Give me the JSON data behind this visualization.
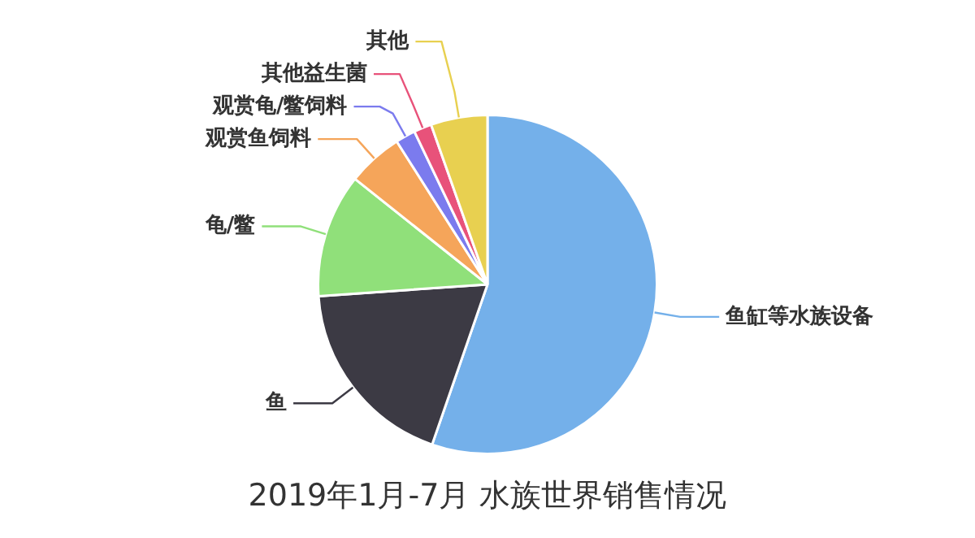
{
  "chart_data": {
    "type": "pie",
    "title": "2019年1月-7月 水族世界销售情况",
    "categories": [
      "鱼缸等水族设备",
      "鱼",
      "龟/鳖",
      "观赏鱼饲料",
      "观赏龟/鳖饲料",
      "其他益生菌",
      "其他"
    ],
    "values": [
      55.3,
      18.6,
      11.8,
      5.3,
      1.9,
      1.7,
      5.4
    ],
    "colors": [
      "#74b0ea",
      "#3c3a44",
      "#90e07a",
      "#f5a55a",
      "#7b7bee",
      "#e8527a",
      "#e8d050"
    ],
    "legend": false
  }
}
